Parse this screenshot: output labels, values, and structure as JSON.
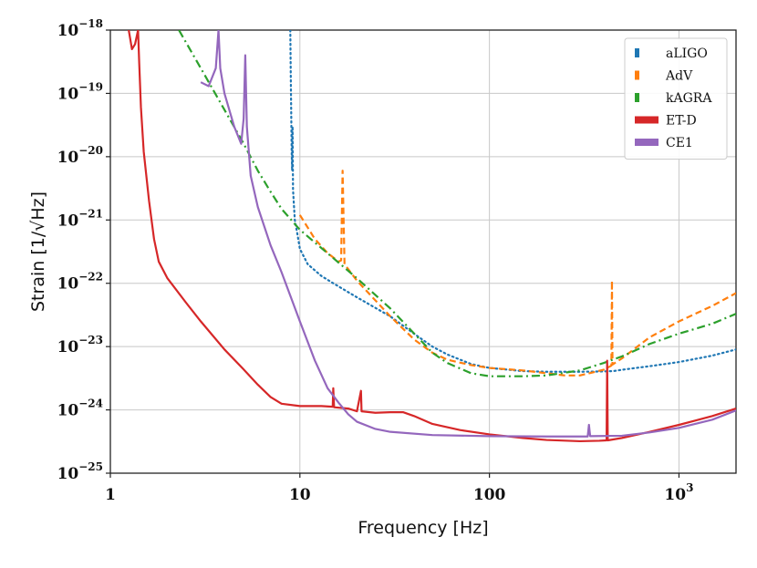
{
  "chart_data": {
    "type": "line",
    "title": "",
    "xlabel": "Frequency  [Hz]",
    "ylabel": "Strain  [1/√Hz]",
    "xscale": "log",
    "yscale": "log",
    "xlim": [
      1,
      2000
    ],
    "ylim": [
      1e-25,
      1e-18
    ],
    "grid": true,
    "legend_position": "top-right",
    "x_ticks": [
      {
        "value": 1,
        "label": "1"
      },
      {
        "value": 10,
        "label": "10"
      },
      {
        "value": 100,
        "label": "100"
      },
      {
        "value": 1000,
        "base": "10",
        "exp": "3"
      }
    ],
    "y_ticks": [
      {
        "value": 1e-25,
        "base": "10",
        "exp": "−25"
      },
      {
        "value": 1e-24,
        "base": "10",
        "exp": "−24"
      },
      {
        "value": 1e-23,
        "base": "10",
        "exp": "−23"
      },
      {
        "value": 1e-22,
        "base": "10",
        "exp": "−22"
      },
      {
        "value": 1e-21,
        "base": "10",
        "exp": "−21"
      },
      {
        "value": 1e-20,
        "base": "10",
        "exp": "−20"
      },
      {
        "value": 1e-19,
        "base": "10",
        "exp": "−19"
      },
      {
        "value": 1e-18,
        "base": "10",
        "exp": "−18"
      }
    ],
    "series": [
      {
        "name": "aLIGO",
        "color": "#1f77b4",
        "dash": "dotted",
        "points": [
          [
            8.9,
            1e-18
          ],
          [
            8.95,
            2e-19
          ],
          [
            9.0,
            5e-20
          ],
          [
            9.05,
            1.2e-20
          ],
          [
            9.1,
            6e-21
          ],
          [
            9.15,
            3e-20
          ],
          [
            9.2,
            3e-21
          ],
          [
            9.4,
            1e-21
          ],
          [
            9.7,
            6e-22
          ],
          [
            10,
            3.5e-22
          ],
          [
            11,
            2e-22
          ],
          [
            13,
            1.3e-22
          ],
          [
            15,
            1e-22
          ],
          [
            20,
            6e-23
          ],
          [
            30,
            3e-23
          ],
          [
            40,
            1.6e-23
          ],
          [
            50,
            1e-23
          ],
          [
            60,
            7.5e-24
          ],
          [
            80,
            5.3e-24
          ],
          [
            100,
            4.6e-24
          ],
          [
            150,
            4.1e-24
          ],
          [
            200,
            4e-24
          ],
          [
            300,
            4e-24
          ],
          [
            400,
            4.05e-24
          ],
          [
            450,
            4.1e-24
          ],
          [
            500,
            4.3e-24
          ],
          [
            700,
            4.9e-24
          ],
          [
            1000,
            5.7e-24
          ],
          [
            1500,
            7.2e-24
          ],
          [
            2000,
            9e-24
          ]
        ]
      },
      {
        "name": "AdV",
        "color": "#ff7f0e",
        "dash": "dashed",
        "points": [
          [
            10,
            1.2e-21
          ],
          [
            12,
            5e-22
          ],
          [
            14,
            3e-22
          ],
          [
            16,
            2.2e-22
          ],
          [
            16.5,
            2.3e-22
          ],
          [
            16.8,
            6e-21
          ],
          [
            17.2,
            2e-22
          ],
          [
            20,
            1.1e-22
          ],
          [
            30,
            3e-23
          ],
          [
            40,
            1.3e-23
          ],
          [
            50,
            8e-24
          ],
          [
            60,
            6.2e-24
          ],
          [
            80,
            5.1e-24
          ],
          [
            100,
            4.6e-24
          ],
          [
            150,
            4.2e-24
          ],
          [
            200,
            3.8e-24
          ],
          [
            250,
            3.5e-24
          ],
          [
            300,
            3.5e-24
          ],
          [
            400,
            4.3e-24
          ],
          [
            440,
            5e-24
          ],
          [
            443,
            1.1e-22
          ],
          [
            446,
            5.2e-24
          ],
          [
            500,
            6.5e-24
          ],
          [
            700,
            1.4e-23
          ],
          [
            1000,
            2.5e-23
          ],
          [
            1500,
            4.4e-23
          ],
          [
            2000,
            7e-23
          ]
        ]
      },
      {
        "name": "kAGRA",
        "color": "#2ca02c",
        "dash": "dashdot",
        "points": [
          [
            2.3,
            1e-18
          ],
          [
            3,
            2.5e-19
          ],
          [
            4,
            5.5e-20
          ],
          [
            5,
            1.7e-20
          ],
          [
            6,
            6e-21
          ],
          [
            7,
            2.8e-21
          ],
          [
            8,
            1.5e-21
          ],
          [
            10,
            7e-22
          ],
          [
            15,
            2.5e-22
          ],
          [
            20,
            1.2e-22
          ],
          [
            30,
            4e-23
          ],
          [
            50,
            8e-24
          ],
          [
            60,
            5.5e-24
          ],
          [
            80,
            3.8e-24
          ],
          [
            100,
            3.4e-24
          ],
          [
            150,
            3.4e-24
          ],
          [
            200,
            3.5e-24
          ],
          [
            300,
            4.2e-24
          ],
          [
            400,
            5.5e-24
          ],
          [
            500,
            7e-24
          ],
          [
            700,
            1.1e-23
          ],
          [
            1000,
            1.6e-23
          ],
          [
            1500,
            2.3e-23
          ],
          [
            2000,
            3.3e-23
          ]
        ]
      },
      {
        "name": "ET-D",
        "color": "#d62728",
        "dash": "solid",
        "points": [
          [
            1.25,
            1e-18
          ],
          [
            1.3,
            5e-19
          ],
          [
            1.35,
            6e-19
          ],
          [
            1.4,
            1e-18
          ],
          [
            1.42,
            3e-19
          ],
          [
            1.45,
            6e-20
          ],
          [
            1.5,
            1.2e-20
          ],
          [
            1.6,
            2e-21
          ],
          [
            1.7,
            5e-22
          ],
          [
            1.8,
            2.2e-22
          ],
          [
            2,
            1.2e-22
          ],
          [
            2.5,
            5e-23
          ],
          [
            3,
            2.5e-23
          ],
          [
            4,
            9e-24
          ],
          [
            5,
            4.5e-24
          ],
          [
            6,
            2.5e-24
          ],
          [
            7,
            1.6e-24
          ],
          [
            8,
            1.25e-24
          ],
          [
            10,
            1.15e-24
          ],
          [
            13,
            1.15e-24
          ],
          [
            14.9,
            1.12e-24
          ],
          [
            15,
            2.2e-24
          ],
          [
            15.15,
            1.1e-24
          ],
          [
            18,
            1.05e-24
          ],
          [
            20,
            9.5e-25
          ],
          [
            21,
            2e-24
          ],
          [
            21.15,
            9.5e-25
          ],
          [
            25,
            9e-25
          ],
          [
            30,
            9.2e-25
          ],
          [
            35,
            9.2e-25
          ],
          [
            40,
            8e-25
          ],
          [
            50,
            6e-25
          ],
          [
            70,
            4.8e-25
          ],
          [
            100,
            4.1e-25
          ],
          [
            150,
            3.6e-25
          ],
          [
            200,
            3.35e-25
          ],
          [
            300,
            3.2e-25
          ],
          [
            380,
            3.25e-25
          ],
          [
            415,
            3.3e-25
          ],
          [
            418,
            6e-24
          ],
          [
            421,
            3.3e-25
          ],
          [
            500,
            3.6e-25
          ],
          [
            700,
            4.5e-25
          ],
          [
            1000,
            5.8e-25
          ],
          [
            1500,
            8e-25
          ],
          [
            2000,
            1.05e-24
          ]
        ]
      },
      {
        "name": "CE1",
        "color": "#9467bd",
        "dash": "solid",
        "points": [
          [
            3,
            1.5e-19
          ],
          [
            3.3,
            1.3e-19
          ],
          [
            3.6,
            2.5e-19
          ],
          [
            3.72,
            1e-18
          ],
          [
            3.8,
            2.5e-19
          ],
          [
            4,
            1e-19
          ],
          [
            4.5,
            3e-20
          ],
          [
            4.9,
            1.6e-20
          ],
          [
            5.05,
            4e-20
          ],
          [
            5.15,
            4e-19
          ],
          [
            5.25,
            3e-20
          ],
          [
            5.5,
            5e-21
          ],
          [
            6,
            1.6e-21
          ],
          [
            7,
            4e-22
          ],
          [
            8,
            1.5e-22
          ],
          [
            10,
            2.5e-23
          ],
          [
            12,
            6e-24
          ],
          [
            14,
            2.2e-24
          ],
          [
            16,
            1.3e-24
          ],
          [
            18,
            8.5e-25
          ],
          [
            20,
            6.5e-25
          ],
          [
            25,
            5e-25
          ],
          [
            30,
            4.5e-25
          ],
          [
            50,
            4e-25
          ],
          [
            100,
            3.85e-25
          ],
          [
            200,
            3.8e-25
          ],
          [
            330,
            3.8e-25
          ],
          [
            335,
            5.8e-25
          ],
          [
            340,
            3.85e-25
          ],
          [
            500,
            3.9e-25
          ],
          [
            700,
            4.4e-25
          ],
          [
            1000,
            5.2e-25
          ],
          [
            1500,
            7e-25
          ],
          [
            2000,
            9.8e-25
          ]
        ]
      }
    ]
  }
}
